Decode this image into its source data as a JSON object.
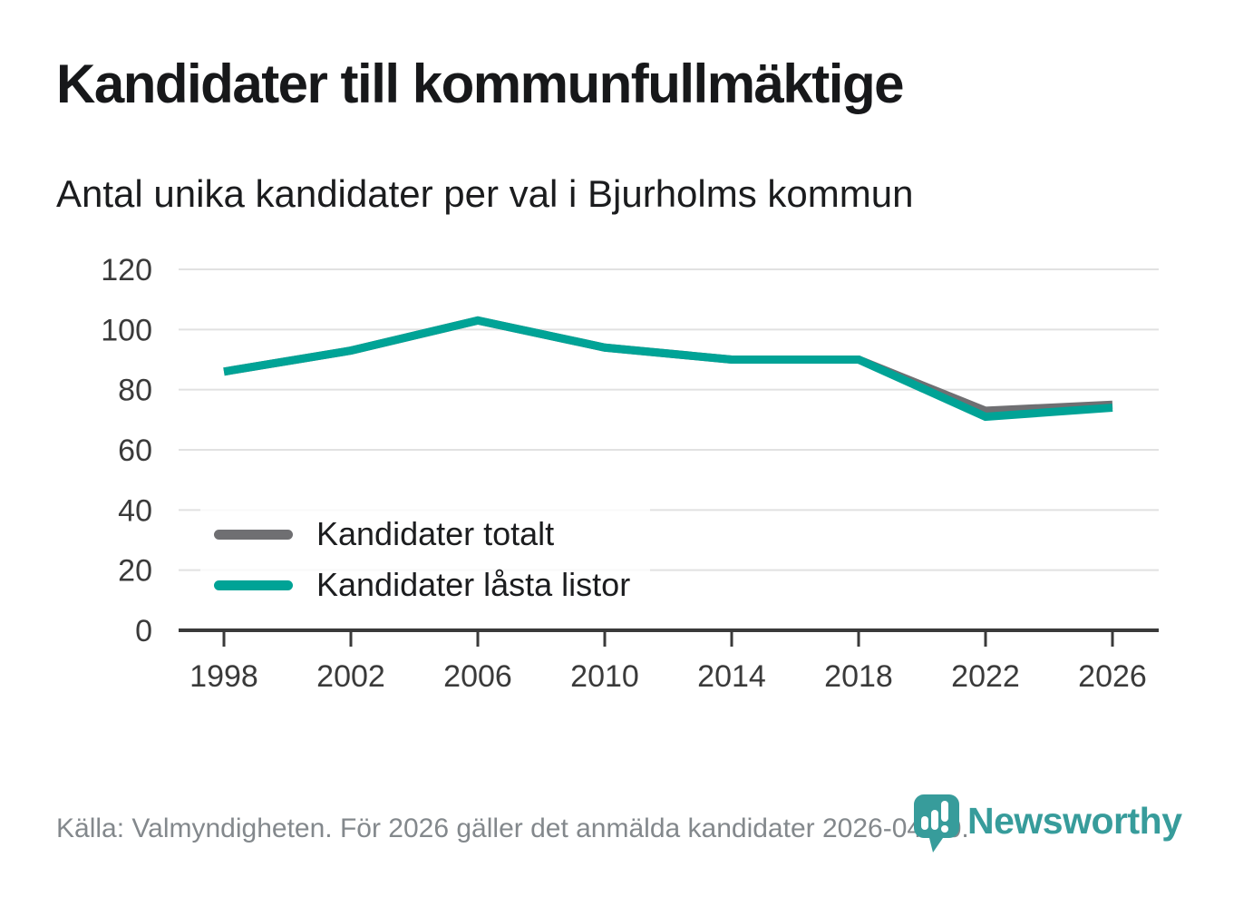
{
  "header": {
    "title": "Kandidater till kommunfullmäktige",
    "subtitle": "Antal unika kandidater per val i Bjurholms kommun"
  },
  "chart_data": {
    "type": "line",
    "title": "Kandidater till kommunfullmäktige",
    "subtitle": "Antal unika kandidater per val i Bjurholms kommun",
    "categories": [
      "1998",
      "2002",
      "2006",
      "2010",
      "2014",
      "2018",
      "2022",
      "2026"
    ],
    "series": [
      {
        "name": "Kandidater totalt",
        "color": "#6f6f72",
        "values": [
          86,
          93,
          103,
          94,
          90,
          90,
          73,
          75
        ]
      },
      {
        "name": "Kandidater låsta listor",
        "color": "#00a396",
        "values": [
          86,
          93,
          103,
          94,
          90,
          90,
          71,
          74
        ]
      }
    ],
    "xlabel": "",
    "ylabel": "",
    "ylim": [
      0,
      120
    ],
    "yticks": [
      0,
      20,
      40,
      60,
      80,
      100,
      120
    ],
    "grid": true,
    "legend_position": "inside-left",
    "grid_color": "#e1e1e1",
    "axis_color": "#3a3a3a",
    "tick_label_color": "#3a3a3a"
  },
  "footer": {
    "source": "Källa: Valmyndigheten. För 2026 gäller det anmälda kandidater 2026-04-10.",
    "brand": "Newsworthy",
    "brand_color": "#379c9b"
  }
}
